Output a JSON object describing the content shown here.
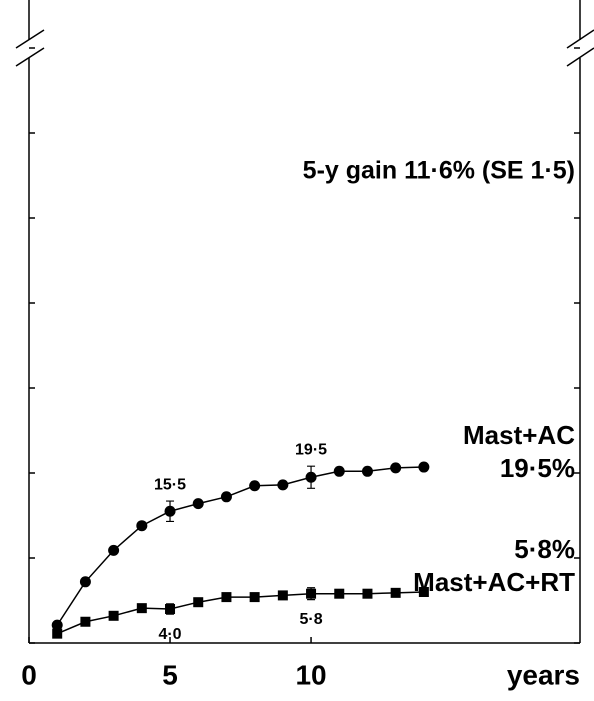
{
  "chart_data": {
    "type": "line",
    "title": "5-y gain 11·6% (SE 1·5)",
    "x_label": "years",
    "xlim": [
      0,
      19.5
    ],
    "xticks": [
      0,
      5,
      10
    ],
    "ylim": [
      0,
      74
    ],
    "yticks": [
      0,
      10,
      20,
      30,
      40,
      50,
      60,
      70
    ],
    "series": [
      {
        "name": "Mast+AC",
        "end_label": "19·5%",
        "marker": "circle",
        "color": "#000000",
        "x": [
          1,
          2,
          3,
          4,
          5,
          6,
          7,
          8,
          9,
          10,
          11,
          12,
          13,
          14
        ],
        "values": [
          2.1,
          7.2,
          10.9,
          13.8,
          15.5,
          16.4,
          17.2,
          18.5,
          18.6,
          19.5,
          20.2,
          20.2,
          20.6,
          20.7
        ],
        "errors": [
          null,
          null,
          null,
          null,
          1.2,
          null,
          null,
          null,
          null,
          1.3,
          null,
          null,
          null,
          null
        ],
        "value_labels": [
          null,
          null,
          null,
          null,
          "15·5",
          null,
          null,
          null,
          null,
          "19·5",
          null,
          null,
          null,
          null
        ]
      },
      {
        "name": "Mast+AC+RT",
        "end_label": "5·8%",
        "marker": "square",
        "color": "#000000",
        "x": [
          1,
          2,
          3,
          4,
          5,
          6,
          7,
          8,
          9,
          10,
          11,
          12,
          13,
          14
        ],
        "values": [
          1.1,
          2.5,
          3.2,
          4.1,
          4.0,
          4.8,
          5.4,
          5.4,
          5.6,
          5.8,
          5.8,
          5.8,
          5.9,
          6.0
        ],
        "errors": [
          null,
          null,
          null,
          null,
          0.6,
          null,
          null,
          null,
          null,
          0.7,
          null,
          null,
          null,
          null
        ],
        "value_labels": [
          null,
          null,
          null,
          null,
          "4·0",
          null,
          null,
          null,
          null,
          "5·8",
          null,
          null,
          null,
          null
        ]
      }
    ]
  }
}
